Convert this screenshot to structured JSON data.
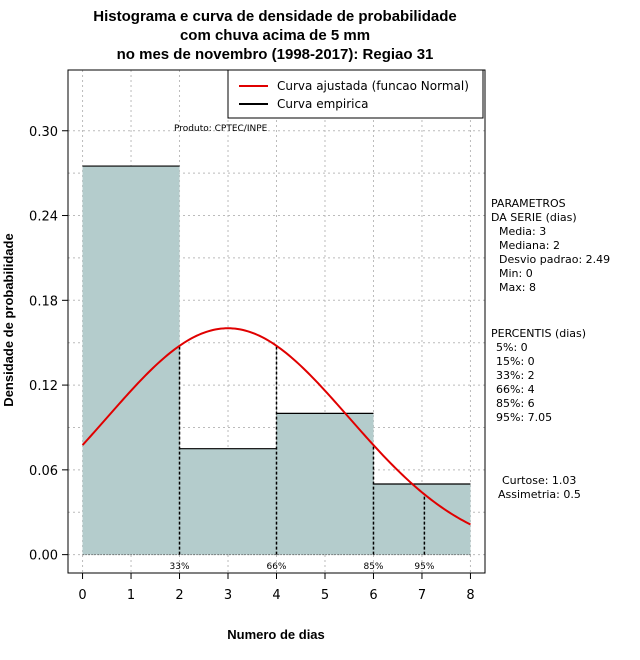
{
  "chart_data": {
    "type": "bar",
    "title_lines": [
      "Histograma e curva de densidade de probabilidade",
      "com chuva acima de 5 mm",
      "no mes de novembro (1998-2017): Regiao 31"
    ],
    "xlabel": "Numero de dias",
    "ylabel": "Densidade de probabilidade",
    "xlim": [
      -0.3,
      8.3
    ],
    "ylim": [
      -0.013,
      0.343
    ],
    "x_ticks": [
      0,
      1,
      2,
      3,
      4,
      5,
      6,
      7,
      8
    ],
    "y_ticks": [
      0.0,
      0.06,
      0.12,
      0.18,
      0.24,
      0.3
    ],
    "y_tick_labels": [
      "0.00",
      "0.06",
      "0.12",
      "0.18",
      "0.24",
      "0.30"
    ],
    "grid": true,
    "bins": [
      {
        "start": 0,
        "end": 2,
        "density": 0.275
      },
      {
        "start": 2,
        "end": 4,
        "density": 0.075
      },
      {
        "start": 4,
        "end": 6,
        "density": 0.1
      },
      {
        "start": 6,
        "end": 8,
        "density": 0.05
      }
    ],
    "normal_curve": {
      "mean": 3,
      "sd": 2.49,
      "x_from": 0,
      "x_to": 8
    },
    "percentile_lines": [
      {
        "label": "33%",
        "x": 2
      },
      {
        "label": "66%",
        "x": 4
      },
      {
        "label": "85%",
        "x": 6
      },
      {
        "label": "95%",
        "x": 7.05
      }
    ],
    "legend": [
      {
        "label": "Curva ajustada (funcao Normal)",
        "color": "#e00000"
      },
      {
        "label": "Curva empirica",
        "color": "#000000"
      }
    ],
    "legend_position": "top-right",
    "annotation": "Produto: CPTEC/INPE",
    "colors": {
      "bar_fill": "#b4cccc",
      "curve": "#e00000",
      "grid": "#bbbbbb"
    }
  },
  "stats": {
    "parametros_title": [
      "PARAMETROS",
      "DA SERIE (dias)"
    ],
    "parametros": [
      "Media: 3",
      "Mediana: 2",
      "Desvio padrao: 2.49",
      "Min: 0",
      "Max: 8"
    ],
    "percentis_title": "PERCENTIS (dias)",
    "percentis": [
      "5%: 0",
      "15%: 0",
      "33%: 2",
      "66%: 4",
      "85%: 6",
      "95%: 7.05"
    ],
    "shape": [
      "Curtose: 1.03",
      "Assimetria: 0.5"
    ]
  }
}
